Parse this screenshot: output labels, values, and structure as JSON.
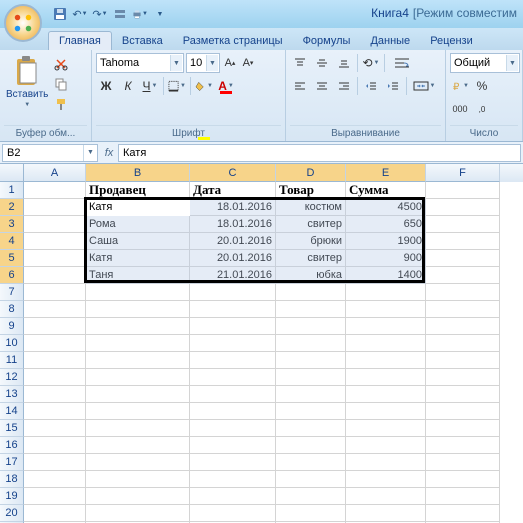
{
  "window": {
    "doc_title": "Книга4",
    "mode": "[Режим совместим"
  },
  "qat_icons": [
    "save",
    "undo",
    "redo",
    "tool",
    "print"
  ],
  "tabs": [
    {
      "label": "Главная",
      "active": true
    },
    {
      "label": "Вставка",
      "active": false
    },
    {
      "label": "Разметка страницы",
      "active": false
    },
    {
      "label": "Формулы",
      "active": false
    },
    {
      "label": "Данные",
      "active": false
    },
    {
      "label": "Рецензи",
      "active": false
    }
  ],
  "ribbon": {
    "clipboard": {
      "paste_label": "Вставить",
      "group": "Буфер обм..."
    },
    "font": {
      "name": "Tahoma",
      "size": "10",
      "group": "Шрифт"
    },
    "align": {
      "group": "Выравнивание"
    },
    "number": {
      "format": "Общий",
      "group": "Число"
    }
  },
  "namebox": "B2",
  "formula": "Катя",
  "columns": [
    "A",
    "B",
    "C",
    "D",
    "E",
    "F"
  ],
  "col_widths": {
    "A": 62,
    "B": 104,
    "C": 86,
    "D": 70,
    "E": 80,
    "F": 74
  },
  "row_count": 22,
  "headers": {
    "B": "Продавец",
    "C": "Дата",
    "D": "Товар",
    "E": "Сумма"
  },
  "data": [
    {
      "B": "Катя",
      "C": "18.01.2016",
      "D": "костюм",
      "E": "4500"
    },
    {
      "B": "Рома",
      "C": "18.01.2016",
      "D": "свитер",
      "E": "650"
    },
    {
      "B": "Саша",
      "C": "20.01.2016",
      "D": "брюки",
      "E": "1900"
    },
    {
      "B": "Катя",
      "C": "20.01.2016",
      "D": "свитер",
      "E": "900"
    },
    {
      "B": "Таня",
      "C": "21.01.2016",
      "D": "юбка",
      "E": "1400"
    }
  ],
  "selection": {
    "top_row": 2,
    "bottom_row": 6,
    "left_col": "B",
    "right_col": "E",
    "active": "B2"
  },
  "colors": {
    "accent": "#15428b",
    "ribbon_bg": "#e4ecf7",
    "grid": "#d4d4d4",
    "sel_border": "#000000"
  }
}
